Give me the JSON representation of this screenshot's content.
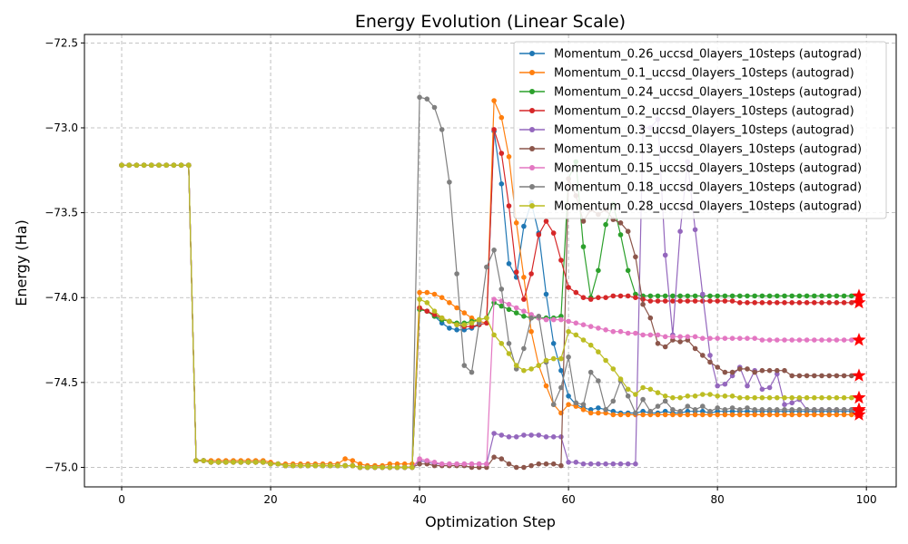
{
  "chart_data": {
    "type": "line",
    "title": "Energy Evolution (Linear Scale)",
    "xlabel": "Optimization Step",
    "ylabel": "Energy (Ha)",
    "xlim": [
      -5,
      104
    ],
    "ylim": [
      -75.115,
      -72.45
    ],
    "xticks": [
      0,
      20,
      40,
      60,
      80,
      100
    ],
    "yticks": [
      -75.0,
      -74.5,
      -74.0,
      -73.5,
      -73.0,
      -72.5
    ],
    "ytick_labels": [
      "−75.0",
      "−74.5",
      "−74.0",
      "−73.5",
      "−73.0",
      "−72.5"
    ],
    "grid": true,
    "legend_position": "top-right",
    "final_marker": "star",
    "final_marker_color": "#ff0000",
    "series": [
      {
        "name": "Momentum_0.26_uccsd_0layers_10steps (autograd)",
        "color": "#1f77b4",
        "values": [
          -73.22,
          -73.22,
          -73.22,
          -73.22,
          -73.22,
          -73.22,
          -73.22,
          -73.22,
          -73.22,
          -73.22,
          -74.96,
          -74.96,
          -74.97,
          -74.97,
          -74.97,
          -74.97,
          -74.97,
          -74.97,
          -74.97,
          -74.97,
          -74.98,
          -74.98,
          -74.99,
          -74.99,
          -74.99,
          -74.99,
          -74.99,
          -74.99,
          -74.99,
          -74.99,
          -74.99,
          -74.99,
          -75.0,
          -75.0,
          -75.0,
          -75.0,
          -75.0,
          -75.0,
          -75.0,
          -75.0,
          -74.07,
          -74.08,
          -74.11,
          -74.15,
          -74.18,
          -74.19,
          -74.19,
          -74.18,
          -74.16,
          -74.15,
          -73.02,
          -73.33,
          -73.8,
          -73.88,
          -73.58,
          -73.44,
          -73.62,
          -73.98,
          -74.27,
          -74.43,
          -74.58,
          -74.63,
          -74.65,
          -74.66,
          -74.65,
          -74.66,
          -74.67,
          -74.68,
          -74.68,
          -74.68,
          -74.67,
          -74.68,
          -74.68,
          -74.67,
          -74.68,
          -74.68,
          -74.67,
          -74.67,
          -74.67,
          -74.68,
          -74.67,
          -74.67,
          -74.67,
          -74.67,
          -74.67,
          -74.67,
          -74.67,
          -74.67,
          -74.67,
          -74.67,
          -74.67,
          -74.67,
          -74.67,
          -74.67,
          -74.67,
          -74.67,
          -74.67,
          -74.67,
          -74.67,
          -74.67
        ]
      },
      {
        "name": "Momentum_0.1_uccsd_0layers_10steps (autograd)",
        "color": "#ff7f0e",
        "values": [
          -73.22,
          -73.22,
          -73.22,
          -73.22,
          -73.22,
          -73.22,
          -73.22,
          -73.22,
          -73.22,
          -73.22,
          -74.96,
          -74.96,
          -74.96,
          -74.96,
          -74.96,
          -74.96,
          -74.96,
          -74.96,
          -74.96,
          -74.96,
          -74.97,
          -74.98,
          -74.98,
          -74.98,
          -74.98,
          -74.98,
          -74.98,
          -74.98,
          -74.98,
          -74.98,
          -74.95,
          -74.96,
          -74.98,
          -74.99,
          -74.99,
          -74.99,
          -74.98,
          -74.98,
          -74.98,
          -74.98,
          -73.97,
          -73.97,
          -73.98,
          -74.0,
          -74.03,
          -74.06,
          -74.09,
          -74.12,
          -74.14,
          -74.15,
          -72.84,
          -72.94,
          -73.17,
          -73.56,
          -73.88,
          -74.2,
          -74.4,
          -74.52,
          -74.63,
          -74.68,
          -74.63,
          -74.64,
          -74.66,
          -74.68,
          -74.68,
          -74.68,
          -74.69,
          -74.69,
          -74.69,
          -74.69,
          -74.69,
          -74.69,
          -74.69,
          -74.69,
          -74.69,
          -74.69,
          -74.69,
          -74.69,
          -74.69,
          -74.69,
          -74.69,
          -74.69,
          -74.69,
          -74.69,
          -74.69,
          -74.69,
          -74.69,
          -74.69,
          -74.69,
          -74.69,
          -74.69,
          -74.69,
          -74.69,
          -74.69,
          -74.69,
          -74.69,
          -74.69,
          -74.69,
          -74.69,
          -74.69
        ]
      },
      {
        "name": "Momentum_0.24_uccsd_0layers_10steps (autograd)",
        "color": "#2ca02c",
        "values": [
          -73.22,
          -73.22,
          -73.22,
          -73.22,
          -73.22,
          -73.22,
          -73.22,
          -73.22,
          -73.22,
          -73.22,
          -74.96,
          -74.96,
          -74.97,
          -74.97,
          -74.97,
          -74.97,
          -74.97,
          -74.97,
          -74.97,
          -74.97,
          -74.98,
          -74.98,
          -74.99,
          -74.99,
          -74.99,
          -74.99,
          -74.99,
          -74.99,
          -74.99,
          -74.99,
          -74.99,
          -74.99,
          -75.0,
          -75.0,
          -75.0,
          -75.0,
          -75.0,
          -75.0,
          -75.0,
          -75.0,
          -74.07,
          -74.08,
          -74.11,
          -74.13,
          -74.14,
          -74.15,
          -74.15,
          -74.14,
          -74.13,
          -74.12,
          -74.03,
          -74.05,
          -74.07,
          -74.09,
          -74.11,
          -74.12,
          -74.12,
          -74.12,
          -74.12,
          -74.11,
          -73.3,
          -73.2,
          -73.7,
          -74.0,
          -73.84,
          -73.57,
          -73.45,
          -73.63,
          -73.84,
          -73.98,
          -73.99,
          -73.99,
          -73.99,
          -73.99,
          -73.99,
          -73.99,
          -73.99,
          -73.99,
          -73.99,
          -73.99,
          -73.99,
          -73.99,
          -73.99,
          -73.99,
          -73.99,
          -73.99,
          -73.99,
          -73.99,
          -73.99,
          -73.99,
          -73.99,
          -73.99,
          -73.99,
          -73.99,
          -73.99,
          -73.99,
          -73.99,
          -73.99,
          -73.99,
          -73.99
        ]
      },
      {
        "name": "Momentum_0.2_uccsd_0layers_10steps (autograd)",
        "color": "#d62728",
        "values": [
          -73.22,
          -73.22,
          -73.22,
          -73.22,
          -73.22,
          -73.22,
          -73.22,
          -73.22,
          -73.22,
          -73.22,
          -74.96,
          -74.96,
          -74.97,
          -74.97,
          -74.97,
          -74.97,
          -74.97,
          -74.97,
          -74.97,
          -74.97,
          -74.98,
          -74.98,
          -74.99,
          -74.99,
          -74.99,
          -74.99,
          -74.99,
          -74.99,
          -74.99,
          -74.99,
          -74.99,
          -74.99,
          -75.0,
          -75.0,
          -75.0,
          -75.0,
          -75.0,
          -75.0,
          -75.0,
          -75.0,
          -74.06,
          -74.08,
          -74.1,
          -74.12,
          -74.14,
          -74.16,
          -74.17,
          -74.17,
          -74.16,
          -74.15,
          -73.01,
          -73.15,
          -73.46,
          -73.85,
          -74.01,
          -73.86,
          -73.63,
          -73.55,
          -73.62,
          -73.78,
          -73.94,
          -73.97,
          -74.0,
          -74.01,
          -74.0,
          -74.0,
          -73.99,
          -73.99,
          -73.99,
          -74.0,
          -74.01,
          -74.02,
          -74.02,
          -74.02,
          -74.02,
          -74.02,
          -74.02,
          -74.02,
          -74.02,
          -74.02,
          -74.02,
          -74.02,
          -74.02,
          -74.03,
          -74.03,
          -74.03,
          -74.03,
          -74.03,
          -74.03,
          -74.03,
          -74.03,
          -74.03,
          -74.03,
          -74.03,
          -74.03,
          -74.03,
          -74.03,
          -74.03,
          -74.03,
          -74.03
        ]
      },
      {
        "name": "Momentum_0.3_uccsd_0layers_10steps (autograd)",
        "color": "#9467bd",
        "values": [
          -73.22,
          -73.22,
          -73.22,
          -73.22,
          -73.22,
          -73.22,
          -73.22,
          -73.22,
          -73.22,
          -73.22,
          -74.96,
          -74.96,
          -74.97,
          -74.97,
          -74.97,
          -74.97,
          -74.97,
          -74.97,
          -74.97,
          -74.97,
          -74.98,
          -74.98,
          -74.99,
          -74.99,
          -74.99,
          -74.99,
          -74.99,
          -74.99,
          -74.99,
          -74.99,
          -74.99,
          -74.99,
          -75.0,
          -75.0,
          -75.0,
          -75.0,
          -75.0,
          -75.0,
          -75.0,
          -75.0,
          -74.96,
          -74.97,
          -74.98,
          -74.98,
          -74.98,
          -74.98,
          -74.98,
          -74.98,
          -74.98,
          -74.98,
          -74.8,
          -74.81,
          -74.82,
          -74.82,
          -74.81,
          -74.81,
          -74.81,
          -74.82,
          -74.82,
          -74.82,
          -74.97,
          -74.97,
          -74.98,
          -74.98,
          -74.98,
          -74.98,
          -74.98,
          -74.98,
          -74.98,
          -74.98,
          -73.0,
          -73.0,
          -72.95,
          -73.75,
          -74.22,
          -73.61,
          -73.2,
          -73.6,
          -73.98,
          -74.34,
          -74.52,
          -74.51,
          -74.46,
          -74.41,
          -74.52,
          -74.43,
          -74.54,
          -74.53,
          -74.45,
          -74.63,
          -74.62,
          -74.6,
          -74.66,
          -74.66,
          -74.66,
          -74.66,
          -74.66,
          -74.66,
          -74.66,
          -74.66
        ]
      },
      {
        "name": "Momentum_0.13_uccsd_0layers_10steps (autograd)",
        "color": "#8c564b",
        "values": [
          -73.22,
          -73.22,
          -73.22,
          -73.22,
          -73.22,
          -73.22,
          -73.22,
          -73.22,
          -73.22,
          -73.22,
          -74.96,
          -74.96,
          -74.97,
          -74.97,
          -74.97,
          -74.97,
          -74.97,
          -74.97,
          -74.97,
          -74.97,
          -74.98,
          -74.98,
          -74.99,
          -74.99,
          -74.99,
          -74.99,
          -74.99,
          -74.99,
          -74.99,
          -74.99,
          -74.99,
          -74.99,
          -75.0,
          -75.0,
          -75.0,
          -75.0,
          -75.0,
          -75.0,
          -75.0,
          -75.0,
          -74.98,
          -74.98,
          -74.99,
          -74.99,
          -74.99,
          -74.99,
          -74.99,
          -75.0,
          -75.0,
          -75.0,
          -74.94,
          -74.95,
          -74.98,
          -75.0,
          -75.0,
          -74.99,
          -74.98,
          -74.98,
          -74.98,
          -74.99,
          -73.3,
          -73.4,
          -73.55,
          -73.48,
          -73.51,
          -73.48,
          -73.54,
          -73.56,
          -73.61,
          -73.76,
          -74.04,
          -74.12,
          -74.27,
          -74.29,
          -74.25,
          -74.26,
          -74.25,
          -74.3,
          -74.34,
          -74.38,
          -74.41,
          -74.44,
          -74.44,
          -74.42,
          -74.42,
          -74.44,
          -74.43,
          -74.43,
          -74.43,
          -74.43,
          -74.46,
          -74.46,
          -74.46,
          -74.46,
          -74.46,
          -74.46,
          -74.46,
          -74.46,
          -74.46,
          -74.46
        ]
      },
      {
        "name": "Momentum_0.15_uccsd_0layers_10steps (autograd)",
        "color": "#e377c2",
        "values": [
          -73.22,
          -73.22,
          -73.22,
          -73.22,
          -73.22,
          -73.22,
          -73.22,
          -73.22,
          -73.22,
          -73.22,
          -74.96,
          -74.96,
          -74.97,
          -74.97,
          -74.97,
          -74.97,
          -74.97,
          -74.97,
          -74.97,
          -74.97,
          -74.98,
          -74.98,
          -74.99,
          -74.99,
          -74.99,
          -74.99,
          -74.99,
          -74.99,
          -74.99,
          -74.99,
          -74.99,
          -74.99,
          -75.0,
          -75.0,
          -75.0,
          -75.0,
          -75.0,
          -75.0,
          -75.0,
          -75.0,
          -74.95,
          -74.96,
          -74.97,
          -74.98,
          -74.98,
          -74.98,
          -74.98,
          -74.98,
          -74.98,
          -74.98,
          -74.01,
          -74.02,
          -74.04,
          -74.06,
          -74.08,
          -74.1,
          -74.12,
          -74.13,
          -74.13,
          -74.13,
          -74.14,
          -74.15,
          -74.16,
          -74.17,
          -74.18,
          -74.19,
          -74.2,
          -74.2,
          -74.21,
          -74.21,
          -74.22,
          -74.22,
          -74.22,
          -74.23,
          -74.23,
          -74.23,
          -74.23,
          -74.23,
          -74.24,
          -74.24,
          -74.24,
          -74.24,
          -74.24,
          -74.24,
          -74.24,
          -74.24,
          -74.25,
          -74.25,
          -74.25,
          -74.25,
          -74.25,
          -74.25,
          -74.25,
          -74.25,
          -74.25,
          -74.25,
          -74.25,
          -74.25,
          -74.25,
          -74.25
        ]
      },
      {
        "name": "Momentum_0.18_uccsd_0layers_10steps (autograd)",
        "color": "#7f7f7f",
        "values": [
          -73.22,
          -73.22,
          -73.22,
          -73.22,
          -73.22,
          -73.22,
          -73.22,
          -73.22,
          -73.22,
          -73.22,
          -74.96,
          -74.96,
          -74.97,
          -74.97,
          -74.97,
          -74.97,
          -74.97,
          -74.97,
          -74.97,
          -74.97,
          -74.98,
          -74.98,
          -74.99,
          -74.99,
          -74.99,
          -74.99,
          -74.99,
          -74.99,
          -74.99,
          -74.99,
          -74.99,
          -74.99,
          -75.0,
          -75.0,
          -75.0,
          -75.0,
          -75.0,
          -75.0,
          -75.0,
          -75.0,
          -72.82,
          -72.83,
          -72.88,
          -73.01,
          -73.32,
          -73.86,
          -74.4,
          -74.44,
          -74.15,
          -73.82,
          -73.72,
          -73.95,
          -74.27,
          -74.42,
          -74.3,
          -74.12,
          -74.11,
          -74.38,
          -74.63,
          -74.53,
          -74.35,
          -74.62,
          -74.63,
          -74.44,
          -74.49,
          -74.66,
          -74.61,
          -74.49,
          -74.58,
          -74.68,
          -74.6,
          -74.67,
          -74.64,
          -74.61,
          -74.66,
          -74.67,
          -74.64,
          -74.66,
          -74.64,
          -74.67,
          -74.65,
          -74.66,
          -74.65,
          -74.66,
          -74.65,
          -74.66,
          -74.66,
          -74.66,
          -74.66,
          -74.66,
          -74.66,
          -74.66,
          -74.66,
          -74.66,
          -74.66,
          -74.66,
          -74.66,
          -74.66,
          -74.66,
          -74.66
        ]
      },
      {
        "name": "Momentum_0.28_uccsd_0layers_10steps (autograd)",
        "color": "#bcbd22",
        "values": [
          -73.22,
          -73.22,
          -73.22,
          -73.22,
          -73.22,
          -73.22,
          -73.22,
          -73.22,
          -73.22,
          -73.22,
          -74.96,
          -74.96,
          -74.97,
          -74.97,
          -74.97,
          -74.97,
          -74.97,
          -74.97,
          -74.97,
          -74.97,
          -74.98,
          -74.98,
          -74.99,
          -74.99,
          -74.99,
          -74.99,
          -74.99,
          -74.99,
          -74.99,
          -74.99,
          -74.99,
          -74.99,
          -75.0,
          -75.0,
          -75.0,
          -75.0,
          -75.0,
          -75.0,
          -75.0,
          -75.0,
          -74.01,
          -74.03,
          -74.08,
          -74.12,
          -74.14,
          -74.16,
          -74.16,
          -74.15,
          -74.13,
          -74.12,
          -74.22,
          -74.27,
          -74.33,
          -74.4,
          -74.43,
          -74.42,
          -74.4,
          -74.37,
          -74.36,
          -74.36,
          -74.2,
          -74.22,
          -74.25,
          -74.28,
          -74.32,
          -74.37,
          -74.42,
          -74.48,
          -74.54,
          -74.57,
          -74.53,
          -74.54,
          -74.56,
          -74.58,
          -74.59,
          -74.59,
          -74.58,
          -74.58,
          -74.57,
          -74.57,
          -74.58,
          -74.58,
          -74.58,
          -74.59,
          -74.59,
          -74.59,
          -74.59,
          -74.59,
          -74.59,
          -74.59,
          -74.59,
          -74.59,
          -74.59,
          -74.59,
          -74.59,
          -74.59,
          -74.59,
          -74.59,
          -74.59,
          -74.59
        ]
      }
    ]
  }
}
